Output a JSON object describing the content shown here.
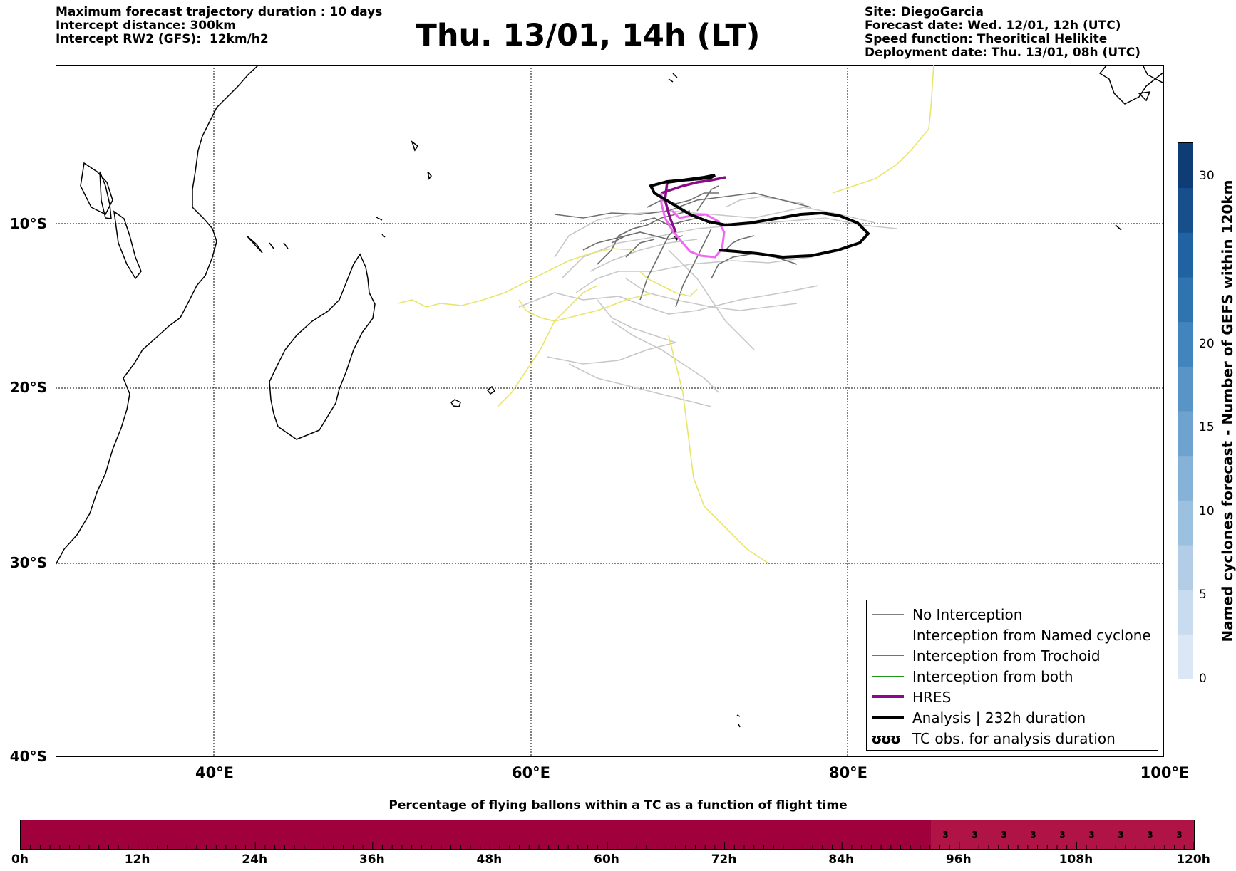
{
  "header": {
    "left": [
      "Maximum forecast trajectory duration : 10 days",
      "Intercept distance: 300km",
      "Intercept RW2 (GFS):  12km/h2"
    ],
    "title": "Thu. 13/01, 14h (LT)",
    "right": [
      "Site: DiegoGarcia",
      "Forecast date: Wed. 12/01, 12h (UTC)",
      "Speed function: Theoritical Helikite",
      "Deployment date: Thu. 13/01, 08h (UTC)"
    ]
  },
  "map": {
    "lat_labels": [
      "10°S",
      "20°S",
      "30°S",
      "40°S"
    ],
    "lon_labels": [
      "40°E",
      "60°E",
      "80°E",
      "100°E"
    ],
    "colors": {
      "coast": "#000000",
      "no_interception": "#6e6e6e",
      "ensemble_light": "#c8c8c8",
      "tc_obs": "#e9e46a",
      "hres": "#8a0a8a",
      "hres_light": "#f067f0",
      "analysis": "#000000"
    }
  },
  "legend": [
    {
      "label": "No Interception",
      "color": "#808080",
      "style": "thin"
    },
    {
      "label": "Interception from Named cyclone",
      "color": "#ff5a1e",
      "style": "thin"
    },
    {
      "label": "Interception from Trochoid",
      "color": "#7d7d1e",
      "style": "thin"
    },
    {
      "label": "Interception from both",
      "color": "#1e961e",
      "style": "thin"
    },
    {
      "label": "HRES",
      "color": "#8a0a8a",
      "style": "thick"
    },
    {
      "label": "Analysis | 232h duration",
      "color": "#000000",
      "style": "thick"
    },
    {
      "label": "TC obs. for analysis duration",
      "symbol": "ʊʊʊ",
      "style": "symbol"
    }
  ],
  "colorbar": {
    "title": "Named cyclones forecast - Number of GEFS within 120km",
    "ticks": [
      "0",
      "5",
      "10",
      "15",
      "20",
      "30"
    ],
    "palette": [
      "#dce7f5",
      "#c9dbef",
      "#b3cde7",
      "#9cc0df",
      "#86b2d7",
      "#6fa3cf",
      "#5894c6",
      "#4284bd",
      "#2f73b1",
      "#2162a2",
      "#174f8d",
      "#0e3c75"
    ]
  },
  "balloon_bar": {
    "title": "Percentage of flying ballons within a TC as a function of flight time",
    "fill_color": "#a0003c",
    "cell_color": "#b01346",
    "ticks": [
      "0h",
      "12h",
      "24h",
      "36h",
      "48h",
      "60h",
      "72h",
      "84h",
      "96h",
      "108h",
      "120h"
    ],
    "values": [
      "3",
      "3",
      "3",
      "3",
      "3",
      "3",
      "3",
      "3",
      "3"
    ]
  }
}
